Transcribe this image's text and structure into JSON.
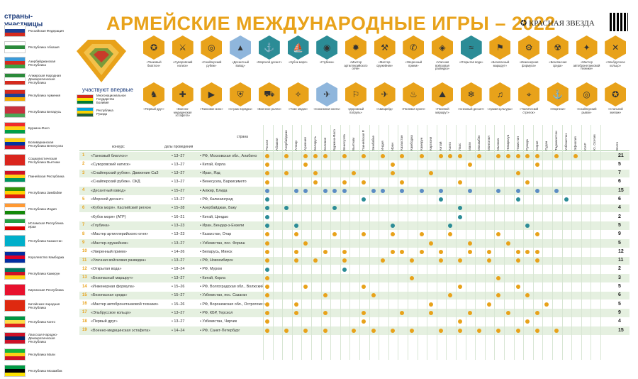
{
  "title": "АРМЕЙСКИЕ МЕЖДУНАРОДНЫЕ ИГРЫ – 2022",
  "newspaper": "КРАСНАЯ ЗВЕЗДА",
  "sidebar": {
    "title": "страны-участницы",
    "countries": [
      {
        "name": "Российская Федерация",
        "flag": [
          "#fff",
          "#1c3f94",
          "#d52b1e"
        ]
      },
      {
        "name": "Республика Абхазия",
        "flag": [
          "#fff",
          "#2a8a3a",
          "#fff"
        ]
      },
      {
        "name": "Азербайджанская Республика",
        "flag": [
          "#3a9ad9",
          "#d52b1e",
          "#3aa346"
        ]
      },
      {
        "name": "Алжирская Народная Демократическая Республика",
        "flag": [
          "#2a8a3a",
          "#fff",
          "#d52b1e"
        ]
      },
      {
        "name": "Республика Армения",
        "flag": [
          "#d52b1e",
          "#1c3f94",
          "#f2a800"
        ]
      },
      {
        "name": "Республика Беларусь",
        "flag": [
          "#c8313e",
          "#c8313e",
          "#4aa657"
        ]
      },
      {
        "name": "Буркина-Фасо",
        "flag": [
          "#ef2b2d",
          "#fcd116",
          "#009e49"
        ]
      },
      {
        "name": "Боливарианская Республика Венесуэла",
        "flag": [
          "#fcd116",
          "#0033a0",
          "#cf142b"
        ]
      },
      {
        "name": "Социалистическая Республика Вьетнам",
        "flag": [
          "#da251d",
          "#da251d",
          "#da251d"
        ]
      },
      {
        "name": "Гвинейская Республика",
        "flag": [
          "#ce1126",
          "#fcd116",
          "#009460"
        ]
      },
      {
        "name": "Республика Зимбабве",
        "flag": [
          "#319208",
          "#ffd200",
          "#de2010"
        ]
      },
      {
        "name": "Республика Индия",
        "flag": [
          "#ff9933",
          "#fff",
          "#138808"
        ]
      },
      {
        "name": "Исламская Республика Иран",
        "flag": [
          "#239f40",
          "#fff",
          "#da0000"
        ]
      },
      {
        "name": "Республика Казахстан",
        "flag": [
          "#00afca",
          "#00afca",
          "#00afca"
        ]
      },
      {
        "name": "Королевство Камбоджа",
        "flag": [
          "#032ea1",
          "#e00025",
          "#032ea1"
        ]
      },
      {
        "name": "Республика Камерун",
        "flag": [
          "#007a5e",
          "#ce1126",
          "#fcd116"
        ]
      },
      {
        "name": "Киргизская Республика",
        "flag": [
          "#e8112d",
          "#e8112d",
          "#e8112d"
        ]
      },
      {
        "name": "Китайская Народная Республика",
        "flag": [
          "#de2910",
          "#de2910",
          "#de2910"
        ]
      },
      {
        "name": "Республика Конго",
        "flag": [
          "#009543",
          "#fbde4a",
          "#dc241f"
        ]
      },
      {
        "name": "Лаосская Народно-Демократическая Республика",
        "flag": [
          "#ce1126",
          "#002868",
          "#ce1126"
        ]
      },
      {
        "name": "Республика Мали",
        "flag": [
          "#14b53a",
          "#fcd116",
          "#ce1126"
        ]
      },
      {
        "name": "Республика Мозамбик",
        "flag": [
          "#009a44",
          "#000",
          "#fce100"
        ]
      }
    ]
  },
  "new_participants": {
    "label": "участвуют впервые",
    "countries": [
      {
        "name": "Многонациональное Государство Боливия",
        "flag": [
          "#d52b1e",
          "#f9e300",
          "#007934"
        ]
      },
      {
        "name": "Республика Руанда",
        "flag": [
          "#00a1de",
          "#fad201",
          "#20603d"
        ]
      }
    ]
  },
  "competitions_top": [
    {
      "label": "«Танковый биатлон»",
      "color": "#e8a21a",
      "icon": "✪"
    },
    {
      "label": "«Суворовский натиск»",
      "color": "#e8a21a",
      "icon": "⚔"
    },
    {
      "label": "«Снайперский рубеж»",
      "color": "#e8a21a",
      "icon": "◎"
    },
    {
      "label": "«Десантный взвод»",
      "color": "#8fb6dc",
      "icon": "▲"
    },
    {
      "label": "«Морской десант»",
      "color": "#2b8c96",
      "icon": "⚓"
    },
    {
      "label": "«Кубок моря»",
      "color": "#2b8c96",
      "icon": "⛵"
    },
    {
      "label": "«Глубина»",
      "color": "#2b8c96",
      "icon": "◉"
    },
    {
      "label": "«Мастер артиллерийского огня»",
      "color": "#e8a21a",
      "icon": "✹"
    },
    {
      "label": "«Мастер-оружейник»",
      "color": "#e8a21a",
      "icon": "⚒"
    },
    {
      "label": "«Уверенный прием»",
      "color": "#e8a21a",
      "icon": "✆"
    },
    {
      "label": "«Уличная войсковая разведка»",
      "color": "#e8a21a",
      "icon": "◈"
    },
    {
      "label": "«Открытая вода»",
      "color": "#2b8c96",
      "icon": "≈"
    },
    {
      "label": "«Безопасный маршрут»",
      "color": "#e8a21a",
      "icon": "⚑"
    },
    {
      "label": "«Инженерная формула»",
      "color": "#e8a21a",
      "icon": "⚙"
    },
    {
      "label": "«Безопасная среда»",
      "color": "#e8a21a",
      "icon": "☢"
    },
    {
      "label": "«Мастер автобронетанковой техники»",
      "color": "#e8a21a",
      "icon": "✦"
    },
    {
      "label": "«Эльбрусское кольцо»",
      "color": "#e8a21a",
      "icon": "✕"
    }
  ],
  "competitions_bottom": [
    {
      "label": "«Первый друг»",
      "color": "#e8a21a",
      "icon": "♞"
    },
    {
      "label": "«Военно-медицинская эстафета»",
      "color": "#e8a21a",
      "icon": "✚"
    },
    {
      "label": "«Танковое кино»",
      "color": "#e8a21a",
      "icon": "▶"
    },
    {
      "label": "«Страж порядка»",
      "color": "#e8a21a",
      "icon": "⛨"
    },
    {
      "label": "«Военное ралли»",
      "color": "#e8a21a",
      "icon": "⛟"
    },
    {
      "label": "«Тоже медик»",
      "color": "#e8a21a",
      "icon": "✧"
    },
    {
      "label": "«Соколиная охота»",
      "color": "#8fb6dc",
      "icon": "✈"
    },
    {
      "label": "«Дорожный патруль»",
      "color": "#e8a21a",
      "icon": "⚐"
    },
    {
      "label": "«Авиарейд»",
      "color": "#e8a21a",
      "icon": "✈"
    },
    {
      "label": "«Полевая кухня»",
      "color": "#e8a21a",
      "icon": "♨"
    },
    {
      "label": "«Полевой маршрут»",
      "color": "#e8a21a",
      "icon": "⛰"
    },
    {
      "label": "«Снежный десант»",
      "color": "#e8a21a",
      "icon": "❄"
    },
    {
      "label": "«Армия культуры»",
      "color": "#e8a21a",
      "icon": "♫"
    },
    {
      "label": "«Тактический стрелок»",
      "color": "#e8a21a",
      "icon": "⌖"
    },
    {
      "label": "«Морпехи»",
      "color": "#e8a21a",
      "icon": "⚓"
    },
    {
      "label": "«Снайперский рывок»",
      "color": "#e8a21a",
      "icon": "◎"
    },
    {
      "label": "«Стальной экипаж»",
      "color": "#e8a21a",
      "icon": "✪"
    }
  ],
  "table": {
    "headers": {
      "num": "№",
      "competition": "конкурс",
      "dates": "даты проведения",
      "location": "место проведения",
      "countries": "страна",
      "total": "всего стран-участниц"
    },
    "columns": [
      "Россия",
      "Абхазия",
      "Азербайджан",
      "Алжир",
      "Армения",
      "Беларусь",
      "Боливия",
      "Буркина-Фасо",
      "Венесуэла",
      "Вьетнам",
      "Гвинейская Р.",
      "Зимбабве",
      "Индия",
      "Иран",
      "Казахстан",
      "Камбоджа",
      "Камерун",
      "Киргизия",
      "Китай",
      "Конго",
      "Лаос",
      "Мали",
      "Мозамбик",
      "Монголия",
      "Мьянма",
      "Никарагуа",
      "Пакистан",
      "Руанда",
      "Сирия",
      "Судан",
      "Таджикистан",
      "Узбекистан",
      "Эфиопия",
      "ЮАР",
      "Ю. Осетия",
      "Всего"
    ],
    "rows": [
      {
        "num": "1",
        "name": "«Танковый биатлон»",
        "dates": "13–27",
        "loc": "РФ, Московская обл., Алабино",
        "tot": "21",
        "dots": "o o ooo o o o o o ooo o ooooo o o"
      },
      {
        "num": "2",
        "name": "«Суворовский натиск»",
        "dates": "13–27",
        "loc": "Китай, Корла",
        "tot": "5",
        "dots": "o   o        o       o      o   "
      },
      {
        "num": "3",
        "name": "«Снайперский рубеж». Движение СаЗ",
        "dates": "13–27",
        "loc": "Иран, Язд",
        "tot": "7",
        "dots": "o o  o   o   o   o        o    "
      },
      {
        "num": "",
        "name": "«Снайперский рубеж». ОКД",
        "dates": "13–27",
        "loc": "Венесуэла, Баркисимето",
        "tot": "6",
        "dots": "o    o  o o   o     o      o   "
      },
      {
        "num": "4",
        "name": "«Десантный взвод»",
        "dates": "15–27",
        "loc": "Алжир, Блида",
        "tot": "15",
        "dots": "b  bb bbb  bb b b b  b  b b b b"
      },
      {
        "num": "5",
        "name": "«Морской десант»",
        "dates": "13–27",
        "loc": "РФ, Калининград",
        "tot": "6",
        "dots": "g         g       g       g    g"
      },
      {
        "num": "6",
        "name": "«Кубок моря». Каспийский регион",
        "dates": "15–28",
        "loc": "Азербайджан, Баку",
        "tot": "4",
        "dots": "g g    g            g         "
      },
      {
        "num": "",
        "name": "«Кубок моря» (АТР)",
        "dates": "16–21",
        "loc": "Китай, Циндао",
        "tot": "2",
        "dots": "g                   g          "
      },
      {
        "num": "7",
        "name": "«Глубина»",
        "dates": "13–23",
        "loc": "Иран, Бендар-э-Ензели",
        "tot": "5",
        "dots": "g  g         g     g       g   "
      },
      {
        "num": "8",
        "name": "«Мастер артиллерийского огня»",
        "dates": "13–23",
        "loc": "Казахстан, Отар",
        "tot": "9",
        "dots": "o  o   o  o  o  o  o    o   o  "
      },
      {
        "num": "9",
        "name": "«Мастер-оружейник»",
        "dates": "13–27",
        "loc": "Узбекистан, пос. Фориш",
        "tot": "5",
        "dots": "o   o            o   o   o    "
      },
      {
        "num": "10",
        "name": "«Уверенный прием»",
        "dates": "14–26",
        "loc": "Беларусь, Минск",
        "tot": "12",
        "dots": "o  o  o o    oo o o  o o  ooo  "
      },
      {
        "num": "11",
        "name": "«Уличная войсковая разведка»",
        "dates": "13–27",
        "loc": "РФ, Новосибирск",
        "tot": "11",
        "dots": "o  o o  o   o  o  o o  o  o o  "
      },
      {
        "num": "12",
        "name": "«Открытая вода»",
        "dates": "18–24",
        "loc": "РФ, Муром",
        "tot": "2",
        "dots": "g       g                       "
      },
      {
        "num": "13",
        "name": "«Безопасный маршрут»",
        "dates": "13–27",
        "loc": "Китай, Корла",
        "tot": "3",
        "dots": "o              o        o      "
      },
      {
        "num": "14",
        "name": "«Инженерная формула»",
        "dates": "15–26",
        "loc": "РФ, Волгоградская обл., Волжский",
        "tot": "5",
        "dots": "o   o     o         o     o    "
      },
      {
        "num": "15",
        "name": "«Безопасная среда»",
        "dates": "15–27",
        "loc": "Узбекистан, пос. Сазаган",
        "tot": "6",
        "dots": "o     o    o       o    o  o   "
      },
      {
        "num": "16",
        "name": "«Мастер автобронетанковой техники»",
        "dates": "15–26",
        "loc": "РФ, Воронежская обл., Острогожск",
        "tot": "5",
        "dots": "o  o             o     o     o "
      },
      {
        "num": "17",
        "name": "«Эльбрусское кольцо»",
        "dates": "13–27",
        "loc": "РФ, КБР, Терскол",
        "tot": "9",
        "dots": "o  o  o   o   o  o   o   o  o  "
      },
      {
        "num": "18",
        "name": "«Первый друг»",
        "dates": "13–27",
        "loc": "Узбекистан, Чирчик",
        "tot": "4",
        "dots": "o         o         o      o   "
      },
      {
        "num": "19",
        "name": "«Военно-медицинская эстафета»",
        "dates": "14–24",
        "loc": "РФ, Санкт-Петербург",
        "tot": "15",
        "dots": "o o o o  o o o o  o o o o o o o"
      }
    ]
  },
  "colors": {
    "orange": "#e8a21a",
    "blue": "#5b8cc4",
    "teal": "#2b8c96",
    "row": "#e5f0e0"
  }
}
